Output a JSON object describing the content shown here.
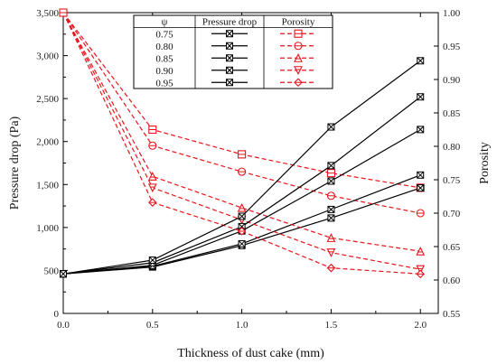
{
  "chart_data": {
    "type": "line",
    "xlabel": "Thickness of dust cake (mm)",
    "ylabel_left": "Pressure drop (Pa)",
    "ylabel_right": "Porosity",
    "xlim": [
      0.0,
      2.1
    ],
    "ylim_left": [
      0,
      3500
    ],
    "ylim_right": [
      0.55,
      1.0
    ],
    "x_ticks": [
      "0.0",
      "0.5",
      "1.0",
      "1.5",
      "2.0"
    ],
    "x_tick_values": [
      0.0,
      0.5,
      1.0,
      1.5,
      2.0
    ],
    "y_left_ticks": [
      "0",
      "500",
      "1,000",
      "1,500",
      "2,000",
      "2,500",
      "3,000",
      "3,500"
    ],
    "y_left_tick_values": [
      0,
      500,
      1000,
      1500,
      2000,
      2500,
      3000,
      3500
    ],
    "y_right_ticks": [
      "0.55",
      "0.60",
      "0.65",
      "0.70",
      "0.75",
      "0.80",
      "0.85",
      "0.90",
      "0.95",
      "1.00"
    ],
    "y_right_tick_values": [
      0.55,
      0.6,
      0.65,
      0.7,
      0.75,
      0.8,
      0.85,
      0.9,
      0.95,
      1.0
    ],
    "x": [
      0.0,
      0.5,
      1.0,
      1.5,
      2.0
    ],
    "legend": {
      "placement": "top-center",
      "header": [
        "ψ",
        "Pressure drop",
        "Porosity"
      ]
    },
    "pressure_color": "#000000",
    "porosity_color": "#e8141c",
    "series": [
      {
        "psi": "0.75",
        "porosity_marker": "square",
        "pressure_values": [
          460,
          540,
          790,
          1110,
          1460
        ],
        "porosity_values": [
          1.0,
          0.825,
          0.788,
          0.76,
          0.738
        ]
      },
      {
        "psi": "0.80",
        "porosity_marker": "circle",
        "pressure_values": [
          460,
          550,
          810,
          1210,
          1610
        ],
        "porosity_values": [
          1.0,
          0.801,
          0.762,
          0.726,
          0.7
        ]
      },
      {
        "psi": "0.85",
        "porosity_marker": "triangle-up",
        "pressure_values": [
          460,
          560,
          960,
          1540,
          2140
        ],
        "porosity_values": [
          1.0,
          0.755,
          0.708,
          0.663,
          0.643
        ]
      },
      {
        "psi": "0.90",
        "porosity_marker": "triangle-down",
        "pressure_values": [
          460,
          590,
          1010,
          1720,
          2520
        ],
        "porosity_values": [
          1.0,
          0.738,
          0.69,
          0.641,
          0.616
        ]
      },
      {
        "psi": "0.95",
        "porosity_marker": "diamond",
        "pressure_values": [
          460,
          620,
          1130,
          2170,
          2940
        ],
        "porosity_values": [
          1.0,
          0.716,
          0.673,
          0.618,
          0.609
        ]
      }
    ]
  }
}
